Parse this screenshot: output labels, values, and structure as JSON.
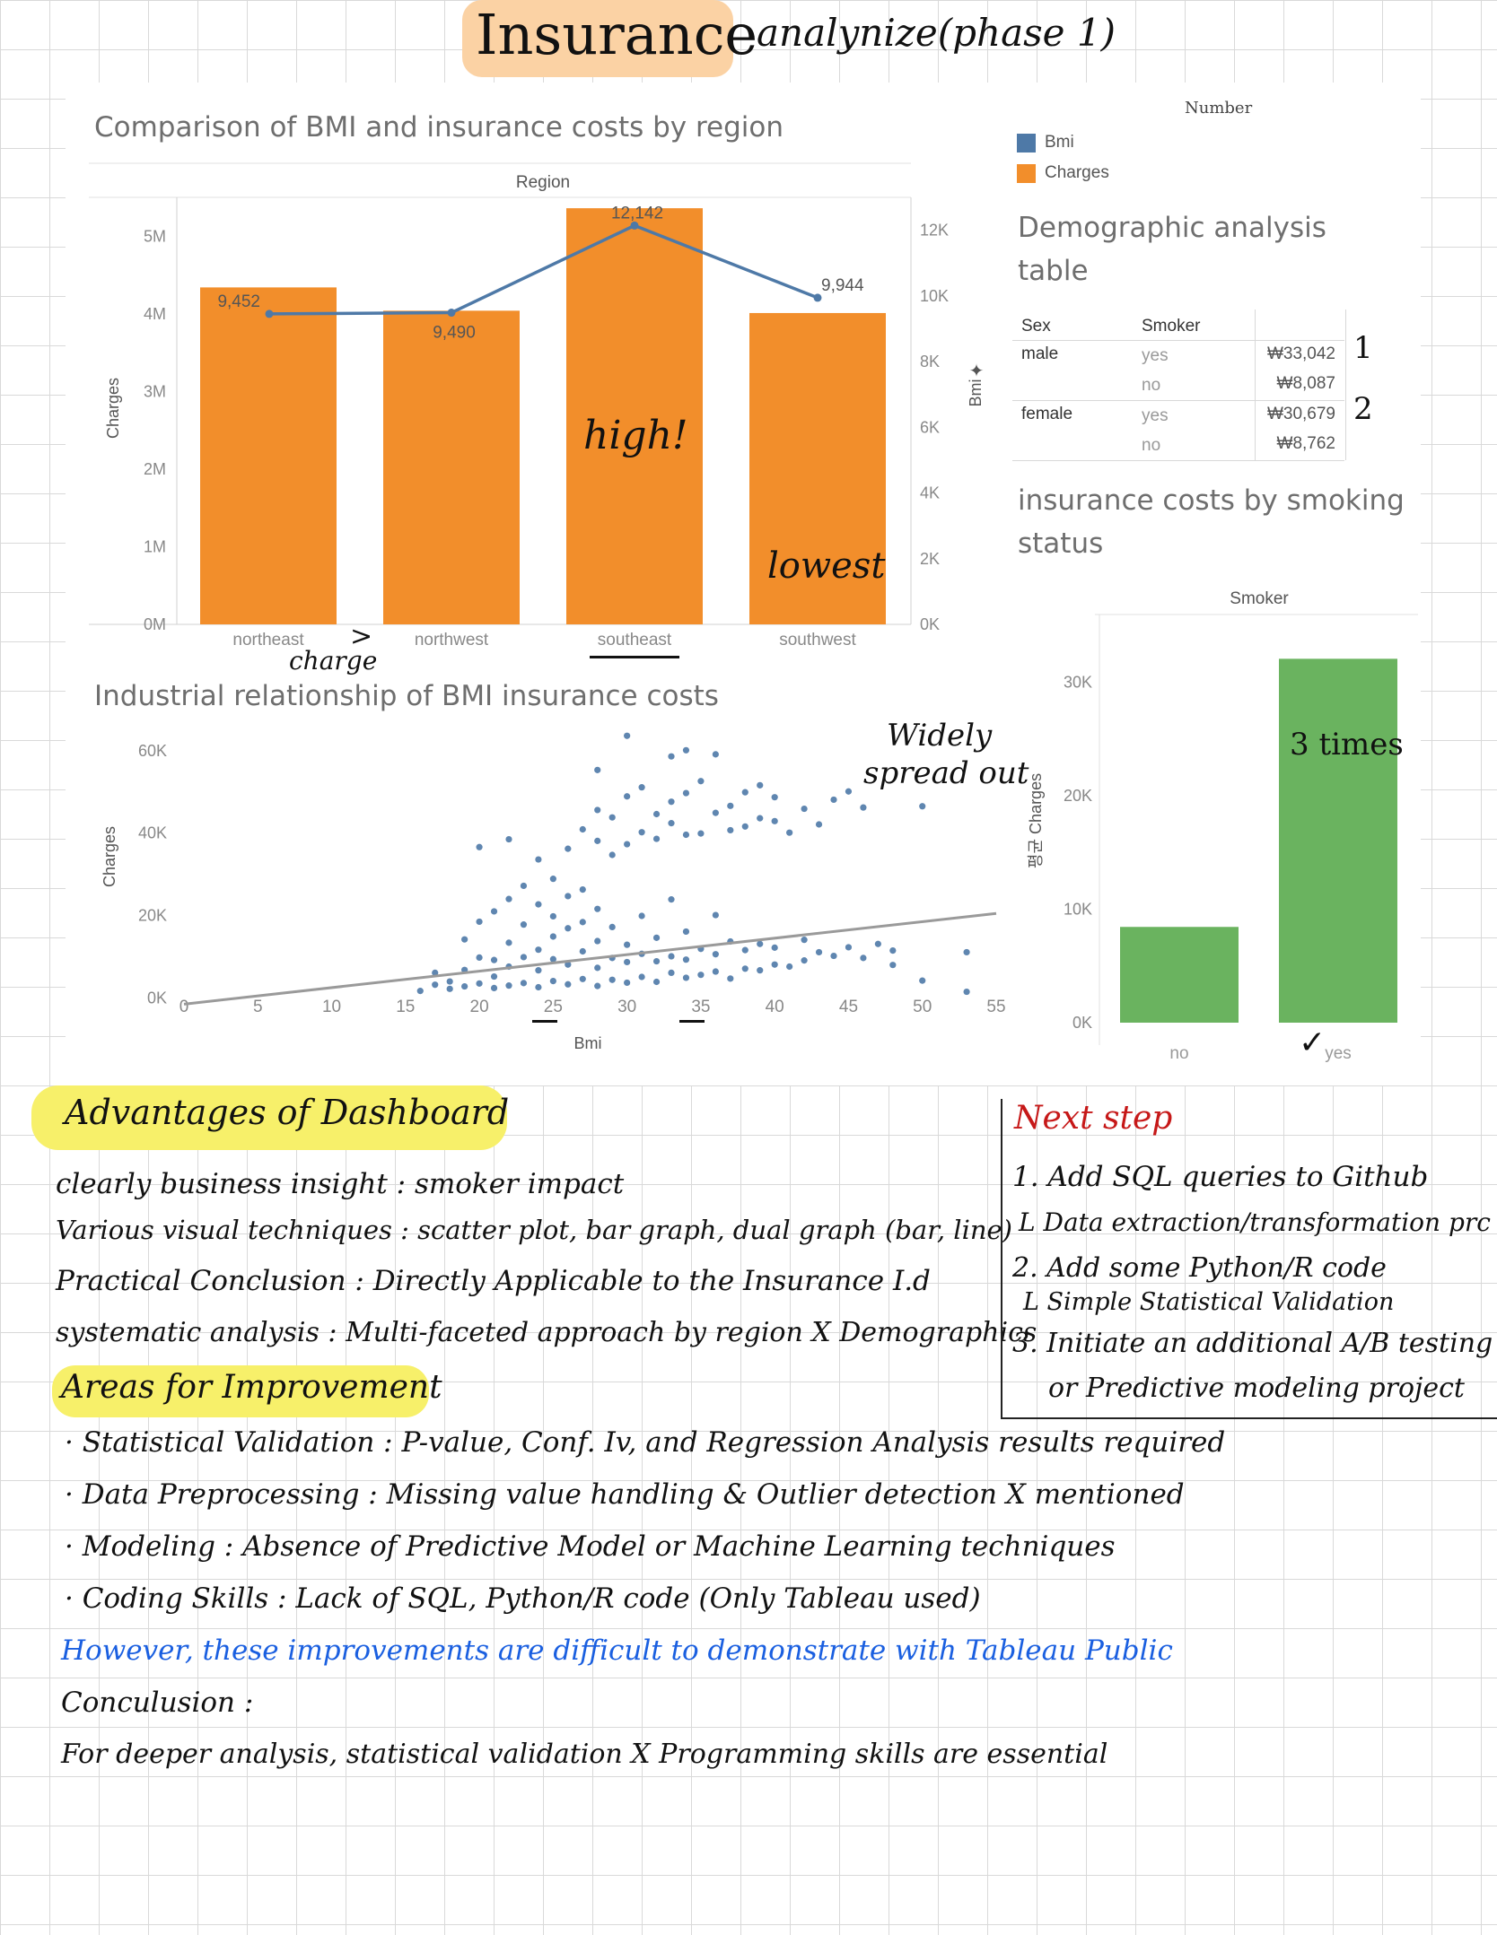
{
  "page": {
    "title_highlight": "Insurance",
    "title_rest": "analynize(phase 1)"
  },
  "bar_line": {
    "title": "Comparison of BMI and insurance costs by region",
    "header": "Region",
    "y_left_label": "Charges",
    "y_right_label": "Bmi",
    "y_left_ticks": [
      "0M",
      "1M",
      "2M",
      "3M",
      "4M",
      "5M"
    ],
    "y_right_ticks": [
      "0K",
      "2K",
      "4K",
      "6K",
      "8K",
      "10K",
      "12K"
    ],
    "notes": {
      "high": "high!",
      "lowest": "lowest",
      "charge": "charge",
      "gt": ">"
    }
  },
  "legend": {
    "title": "Number",
    "items": [
      {
        "label": "Bmi",
        "color": "#4e79a7"
      },
      {
        "label": "Charges",
        "color": "#f28e2b"
      }
    ]
  },
  "demo_table": {
    "title_line1": "Demographic analysis",
    "title_line2": "table",
    "col_sex": "Sex",
    "col_smoker": "Smoker",
    "rows": [
      {
        "sex": "male",
        "smoker": "yes",
        "value": "₩33,042",
        "rank": "1"
      },
      {
        "sex": "",
        "smoker": "no",
        "value": "₩8,087",
        "rank": ""
      },
      {
        "sex": "female",
        "smoker": "yes",
        "value": "₩30,679",
        "rank": "2"
      },
      {
        "sex": "",
        "smoker": "no",
        "value": "₩8,762",
        "rank": ""
      }
    ]
  },
  "smoking": {
    "title_line1": "insurance costs by smoking",
    "title_line2": "status",
    "header": "Smoker",
    "y_label": "평균 Charges",
    "y_ticks": [
      "0K",
      "10K",
      "20K",
      "30K"
    ],
    "note": "3 times",
    "check": "✓"
  },
  "scatter": {
    "title": "Industrial relationship of BMI insurance costs",
    "x_label": "Bmi",
    "y_label": "Charges",
    "x_ticks": [
      "0",
      "5",
      "10",
      "15",
      "20",
      "25",
      "30",
      "35",
      "40",
      "45",
      "50",
      "55"
    ],
    "y_ticks": [
      "0K",
      "20K",
      "40K",
      "60K"
    ],
    "note_line1": "Widely",
    "note_line2": "spread out"
  },
  "chart_data": [
    {
      "type": "bar",
      "title": "Comparison of BMI and insurance costs by region",
      "categories": [
        "northeast",
        "northwest",
        "southeast",
        "southwest"
      ],
      "series": [
        {
          "name": "Charges",
          "values": [
            4340000,
            4040000,
            5360000,
            4010000
          ],
          "color": "#f28e2b",
          "axis": "left"
        },
        {
          "name": "Bmi",
          "type": "line",
          "values": [
            9452,
            9490,
            12142,
            9944
          ],
          "labels": [
            "9,452",
            "9,490",
            "12,142",
            "9,944"
          ],
          "color": "#4e79a7",
          "axis": "right"
        }
      ],
      "ylabel": "Charges",
      "ylim": [
        0,
        5500000
      ],
      "y2label": "Bmi",
      "y2lim": [
        0,
        13000
      ],
      "grid": false,
      "legend": "top-right"
    },
    {
      "type": "bar",
      "title": "insurance costs by smoking status",
      "categories": [
        "no",
        "yes"
      ],
      "values": [
        8434,
        32050
      ],
      "color": "#6ab35f",
      "ylabel": "평균 Charges",
      "ylim": [
        0,
        32000
      ]
    },
    {
      "type": "scatter",
      "title": "Industrial relationship of BMI insurance costs",
      "xlabel": "Bmi",
      "ylabel": "Charges",
      "xlim": [
        0,
        55
      ],
      "ylim": [
        -6000,
        68000
      ],
      "trend_line": {
        "x": [
          0,
          55
        ],
        "y": [
          -1500,
          20500
        ]
      },
      "points": [
        [
          16,
          1700
        ],
        [
          17,
          3200
        ],
        [
          18,
          2200
        ],
        [
          18,
          4000
        ],
        [
          19,
          2800
        ],
        [
          19,
          6800
        ],
        [
          20,
          3500
        ],
        [
          20,
          9800
        ],
        [
          20,
          18500
        ],
        [
          20,
          36600
        ],
        [
          21,
          2400
        ],
        [
          21,
          5200
        ],
        [
          21,
          9200
        ],
        [
          21,
          21000
        ],
        [
          22,
          3000
        ],
        [
          22,
          7600
        ],
        [
          22,
          13400
        ],
        [
          22,
          24000
        ],
        [
          22,
          38500
        ],
        [
          23,
          3600
        ],
        [
          23,
          9900
        ],
        [
          23,
          17800
        ],
        [
          23,
          27200
        ],
        [
          24,
          2600
        ],
        [
          24,
          6700
        ],
        [
          24,
          11700
        ],
        [
          24,
          22700
        ],
        [
          24,
          33600
        ],
        [
          25,
          4100
        ],
        [
          25,
          9400
        ],
        [
          25,
          14900
        ],
        [
          25,
          19800
        ],
        [
          25,
          28900
        ],
        [
          26,
          3300
        ],
        [
          26,
          8100
        ],
        [
          26,
          16900
        ],
        [
          26,
          24700
        ],
        [
          26,
          36200
        ],
        [
          27,
          4600
        ],
        [
          27,
          11300
        ],
        [
          27,
          18400
        ],
        [
          27,
          26300
        ],
        [
          27,
          40900
        ],
        [
          28,
          2900
        ],
        [
          28,
          7300
        ],
        [
          28,
          13800
        ],
        [
          28,
          21600
        ],
        [
          28,
          38100
        ],
        [
          28,
          45600
        ],
        [
          29,
          4400
        ],
        [
          29,
          9700
        ],
        [
          29,
          17200
        ],
        [
          29,
          34700
        ],
        [
          29,
          43800
        ],
        [
          30,
          3700
        ],
        [
          30,
          8700
        ],
        [
          30,
          12900
        ],
        [
          30,
          37300
        ],
        [
          30,
          48900
        ],
        [
          31,
          5100
        ],
        [
          31,
          10700
        ],
        [
          31,
          19900
        ],
        [
          31,
          40200
        ],
        [
          31,
          51100
        ],
        [
          32,
          3900
        ],
        [
          32,
          8900
        ],
        [
          32,
          14600
        ],
        [
          32,
          38600
        ],
        [
          32,
          44600
        ],
        [
          33,
          6100
        ],
        [
          33,
          10100
        ],
        [
          33,
          23900
        ],
        [
          33,
          42400
        ],
        [
          33,
          47600
        ],
        [
          34,
          4900
        ],
        [
          34,
          9300
        ],
        [
          34,
          16100
        ],
        [
          34,
          39600
        ],
        [
          34,
          49700
        ],
        [
          35,
          5600
        ],
        [
          35,
          11900
        ],
        [
          35,
          39900
        ],
        [
          35,
          52600
        ],
        [
          36,
          6400
        ],
        [
          36,
          10600
        ],
        [
          36,
          20100
        ],
        [
          36,
          44900
        ],
        [
          37,
          4700
        ],
        [
          37,
          13700
        ],
        [
          37,
          40700
        ],
        [
          37,
          46600
        ],
        [
          38,
          7100
        ],
        [
          38,
          11600
        ],
        [
          38,
          41600
        ],
        [
          38,
          49900
        ],
        [
          39,
          6700
        ],
        [
          39,
          13100
        ],
        [
          39,
          43600
        ],
        [
          39,
          51600
        ],
        [
          40,
          8100
        ],
        [
          40,
          12200
        ],
        [
          40,
          42900
        ],
        [
          40,
          48700
        ],
        [
          41,
          7600
        ],
        [
          41,
          40100
        ],
        [
          42,
          9100
        ],
        [
          42,
          14100
        ],
        [
          42,
          45900
        ],
        [
          43,
          11100
        ],
        [
          43,
          42100
        ],
        [
          44,
          10200
        ],
        [
          44,
          48100
        ],
        [
          45,
          12300
        ],
        [
          45,
          50100
        ],
        [
          46,
          9700
        ],
        [
          46,
          46200
        ],
        [
          47,
          13100
        ],
        [
          48,
          11500
        ],
        [
          48,
          8000
        ],
        [
          50,
          46500
        ],
        [
          50,
          4200
        ],
        [
          53,
          11100
        ],
        [
          53,
          1500
        ],
        [
          30,
          63600
        ],
        [
          33,
          58600
        ],
        [
          28,
          55300
        ],
        [
          34,
          60100
        ],
        [
          36,
          59100
        ],
        [
          19,
          14200
        ],
        [
          17,
          6100
        ]
      ]
    }
  ],
  "advantages": {
    "title": "Advantages of Dashboard",
    "items": [
      "clearly business insight : smoker impact",
      "Various visual techniques : scatter plot, bar graph, dual graph (bar, line)",
      "Practical Conclusion : Directly Applicable to the Insurance I.d",
      "systematic analysis : Multi-faceted approach by region X Demographics"
    ]
  },
  "improvement": {
    "title": "Areas for Improvement",
    "items": [
      "· Statistical Validation : P-value, Conf. Iv, and Regression Analysis results required",
      "· Data Preprocessing : Missing value handling & Outlier detection X mentioned",
      "· Modeling : Absence of Predictive Model or Machine Learning techniques",
      "· Coding Skills : Lack of SQL, Python/R code (Only Tableau used)"
    ],
    "however": "However, these improvements are difficult to demonstrate with Tableau Public",
    "conclusion_label": "Conculusion :",
    "conclusion": "For deeper analysis, statistical validation X Programming skills are essential"
  },
  "next_step": {
    "title": "Next step",
    "items": [
      "1. Add SQL queries to Github",
      "L Data extraction/transformation prc",
      "2. Add some Python/R code",
      "L Simple Statistical Validation",
      "3. Initiate an additional A/B testing",
      "or Predictive modeling project"
    ]
  },
  "colors": {
    "orange": "#f28e2b",
    "blue": "#4e79a7",
    "green": "#6ab35f",
    "highlight_yellow": "#f7f06a",
    "highlight_peach": "#fbd2a4",
    "red": "#c61818",
    "note_blue": "#1a5fe0"
  }
}
